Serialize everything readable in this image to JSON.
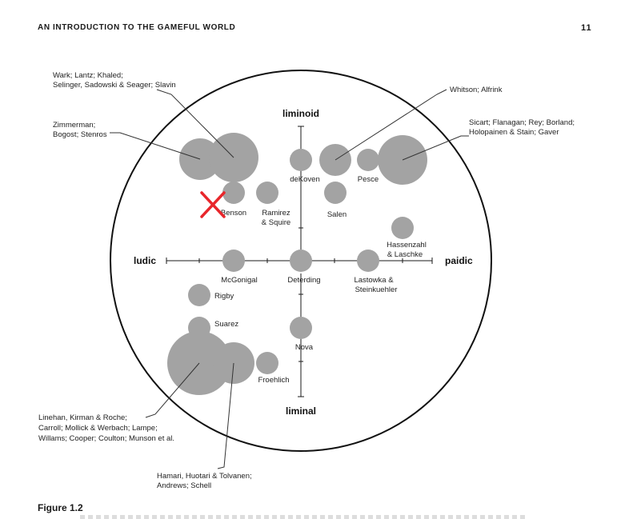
{
  "page": {
    "running_head": "AN INTRODUCTION TO THE GAMEFUL WORLD",
    "page_number": "11",
    "figure_caption": "Figure 1.2"
  },
  "diagram": {
    "poles": {
      "top": "liminoid",
      "bottom": "liminal",
      "left": "ludic",
      "right": "paidic"
    },
    "labels": {
      "dekoven": "deKoven",
      "pesce": "Pesce",
      "benson": "Benson",
      "ramirez_1": "Ramirez",
      "ramirez_2": "& Squire",
      "salen": "Salen",
      "hassenzahl_1": "Hassenzahl",
      "hassenzahl_2": "& Laschke",
      "mcgonigal": "McGonigal",
      "deterding": "Deterding",
      "lastowka_1": "Lastowka &",
      "lastowka_2": "Steinkuehler",
      "rigby": "Rigby",
      "suarez": "Suarez",
      "nova": "Nova",
      "froehlich": "Froehlich"
    },
    "callouts": {
      "wark_1": "Wark; Lantz; Khaled;",
      "wark_2": "Selinger, Sadowski & Seager; Slavin",
      "zimmerman_1": "Zimmerman;",
      "zimmerman_2": "Bogost; Stenros",
      "whitson": "Whitson; Alfrink",
      "sicart_1": "Sicart; Flanagan; Rey; Borland;",
      "sicart_2": "Holopainen & Stain; Gaver",
      "linehan_1": "Linehan, Kirman & Roche;",
      "linehan_2": "Carroll; Mollick & Werbach; Lampe;",
      "linehan_3": "Willams; Cooper; Coulton; Munson et al.",
      "hamari_1": "Hamari, Huotari & Tolvanen;",
      "hamari_2": "Andrews; Schell"
    },
    "annotation": {
      "mark": "red-x",
      "color": "#e8262b"
    },
    "colors": {
      "bubble": "#a3a3a3",
      "ink": "#1a1a1a"
    }
  }
}
